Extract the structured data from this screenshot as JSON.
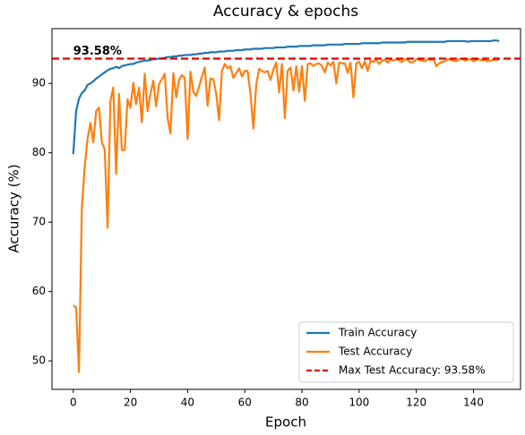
{
  "chart_data": {
    "type": "line",
    "title": "Accuracy & epochs",
    "xlabel": "Epoch",
    "ylabel": "Accuracy (%)",
    "x": [
      0,
      1,
      2,
      3,
      4,
      5,
      6,
      7,
      8,
      9,
      10,
      11,
      12,
      13,
      14,
      15,
      16,
      17,
      18,
      19,
      20,
      21,
      22,
      23,
      24,
      25,
      26,
      27,
      28,
      29,
      30,
      31,
      32,
      33,
      34,
      35,
      36,
      37,
      38,
      39,
      40,
      41,
      42,
      43,
      44,
      45,
      46,
      47,
      48,
      49,
      50,
      51,
      52,
      53,
      54,
      55,
      56,
      57,
      58,
      59,
      60,
      61,
      62,
      63,
      64,
      65,
      66,
      67,
      68,
      69,
      70,
      71,
      72,
      73,
      74,
      75,
      76,
      77,
      78,
      79,
      80,
      81,
      82,
      83,
      84,
      85,
      86,
      87,
      88,
      89,
      90,
      91,
      92,
      93,
      94,
      95,
      96,
      97,
      98,
      99,
      100,
      101,
      102,
      103,
      104,
      105,
      106,
      107,
      108,
      109,
      110,
      111,
      112,
      113,
      114,
      115,
      116,
      117,
      118,
      119,
      120,
      121,
      122,
      123,
      124,
      125,
      126,
      127,
      128,
      129,
      130,
      131,
      132,
      133,
      134,
      135,
      136,
      137,
      138,
      139,
      140,
      141,
      142,
      143,
      144,
      145,
      146,
      147,
      148,
      149
    ],
    "series": [
      {
        "name": "Train Accuracy",
        "color": "#1f77b4",
        "values": [
          79.8,
          86,
          87.8,
          88.6,
          89,
          89.8,
          90,
          90.3,
          90.7,
          91,
          91.3,
          91.6,
          91.9,
          92.1,
          92.2,
          92.4,
          92.2,
          92.5,
          92.6,
          92.7,
          92.8,
          92.8,
          93,
          93.1,
          93.2,
          93.3,
          93.3,
          93.4,
          93.5,
          93.5,
          93.6,
          93.6,
          93.7,
          93.8,
          93.8,
          93.9,
          93.9,
          94,
          94,
          94.1,
          94.1,
          94.1,
          94.2,
          94.2,
          94.3,
          94.3,
          94.4,
          94.4,
          94.5,
          94.5,
          94.5,
          94.6,
          94.6,
          94.6,
          94.7,
          94.7,
          94.7,
          94.8,
          94.8,
          94.8,
          94.9,
          94.9,
          94.9,
          95,
          95,
          95,
          95,
          95.1,
          95.1,
          95.1,
          95.1,
          95.2,
          95.2,
          95.2,
          95.2,
          95.3,
          95.3,
          95.3,
          95.3,
          95.4,
          95.4,
          95.4,
          95.4,
          95.4,
          95.5,
          95.5,
          95.5,
          95.5,
          95.5,
          95.6,
          95.6,
          95.6,
          95.6,
          95.6,
          95.6,
          95.7,
          95.7,
          95.7,
          95.7,
          95.7,
          95.7,
          95.8,
          95.8,
          95.8,
          95.8,
          95.8,
          95.8,
          95.8,
          95.9,
          95.9,
          95.9,
          95.9,
          95.9,
          95.9,
          95.9,
          95.9,
          95.9,
          96,
          96,
          96,
          96,
          96,
          96,
          96,
          96,
          96,
          96,
          96,
          96,
          96,
          96,
          96.1,
          96.1,
          96.1,
          96.1,
          96.1,
          96.1,
          96.1,
          96,
          96.1,
          96.1,
          96.1,
          96.1,
          96.1,
          96.1,
          96.1,
          96.1,
          96.2,
          96.2,
          96.1
        ]
      },
      {
        "name": "Test Accuracy",
        "color": "#ff7f0e",
        "values": [
          58,
          57.7,
          48.4,
          72,
          78,
          82,
          84.3,
          81.5,
          86,
          86.5,
          81.5,
          80.5,
          69.2,
          87.5,
          89.4,
          77,
          88.5,
          80.4,
          80.4,
          87.7,
          86.5,
          90.1,
          87,
          89.4,
          84.4,
          91.4,
          86,
          88.5,
          90.4,
          86.7,
          89.9,
          90.6,
          91.4,
          85,
          82.8,
          91.5,
          88,
          90.5,
          91.2,
          90.8,
          82,
          91.7,
          88.8,
          88.2,
          89.5,
          91,
          92.3,
          86.8,
          90.7,
          90.6,
          88.5,
          84.7,
          91.8,
          92.8,
          92.2,
          92.5,
          90.8,
          91.5,
          92.2,
          91,
          91.8,
          91.8,
          88.4,
          83.5,
          89.8,
          92.1,
          91.8,
          91.6,
          91.8,
          90.5,
          92,
          93,
          88.7,
          92.8,
          85,
          91.8,
          92.3,
          89,
          92.5,
          88.8,
          92.5,
          87.5,
          92.8,
          92.9,
          92.5,
          92.8,
          92.9,
          92.5,
          91.6,
          93,
          92.6,
          93.1,
          90,
          93,
          92.9,
          92.9,
          91.5,
          93,
          88,
          92.9,
          93.1,
          92.2,
          93.2,
          91.8,
          93.3,
          93.1,
          93.4,
          92.8,
          93.3,
          93.4,
          93,
          93.4,
          93.3,
          93.5,
          93.3,
          93.1,
          93.5,
          93.4,
          93,
          93.1,
          93.5,
          93.4,
          93.3,
          93.2,
          93.5,
          93.4,
          93.5,
          92.5,
          92.9,
          93.1,
          93.2,
          93.5,
          93.4,
          93.3,
          93.2,
          93.5,
          93.58,
          93.3,
          93.4,
          93.5,
          93.2,
          93.4,
          93.5,
          93.3,
          93.4,
          93.2,
          93.3,
          93.4,
          93.4,
          93.5
        ]
      }
    ],
    "hline": {
      "name": "Max Test Accuracy: 93.58%",
      "value": 93.58,
      "label": "93.58%",
      "color": "#e00000"
    },
    "xlim": [
      -7.45,
      156.45
    ],
    "ylim": [
      45.9,
      97.9
    ],
    "xticks": [
      0,
      20,
      40,
      60,
      80,
      100,
      120,
      140
    ],
    "yticks": [
      50,
      60,
      70,
      80,
      90
    ],
    "legend": "lower right"
  }
}
